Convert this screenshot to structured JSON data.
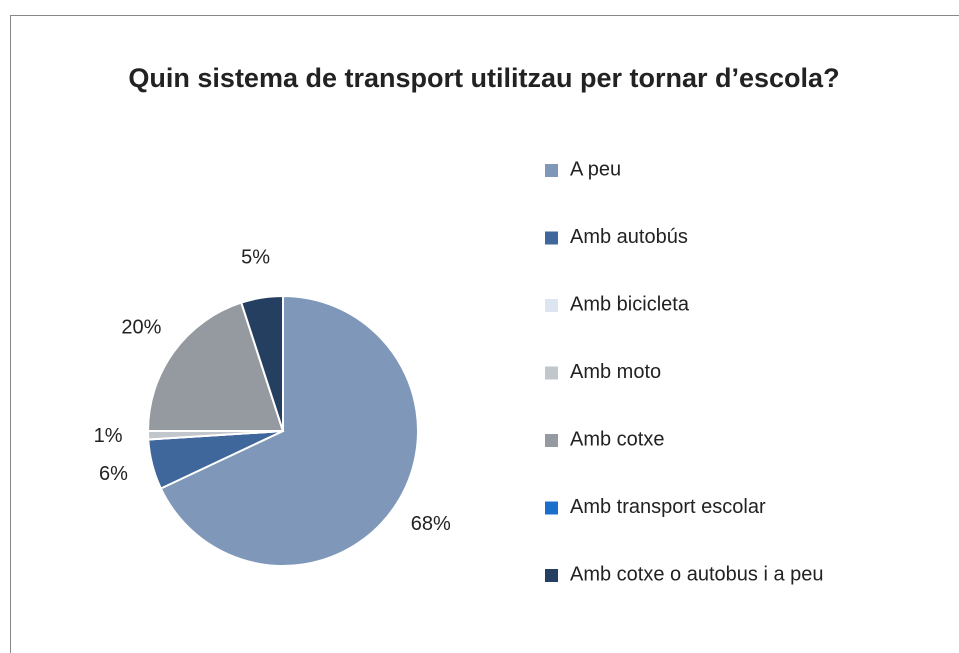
{
  "chart_data": {
    "type": "pie",
    "title": "Quin sistema de transport utilitzau per tornar d’escola?",
    "categories": [
      "A peu",
      "Amb autobús",
      "Amb bicicleta",
      "Amb moto",
      "Amb cotxe",
      "Amb transport escolar",
      "Amb cotxe o autobus i a peu"
    ],
    "values": [
      68,
      6,
      0,
      1,
      20,
      0,
      5
    ],
    "value_labels": [
      "68%",
      "6%",
      null,
      "1%",
      "20%",
      null,
      "5%"
    ],
    "colors": [
      "#7f98b9",
      "#3f679b",
      "#dde5f0",
      "#c2c7cd",
      "#959aa0",
      "#1a6fcc",
      "#243f60"
    ],
    "legend": "right"
  }
}
